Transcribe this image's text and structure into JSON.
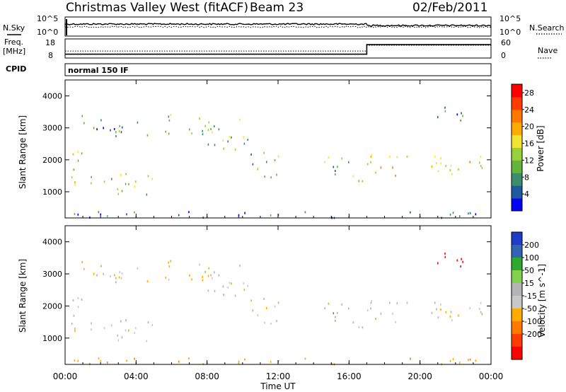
{
  "header": {
    "station": "Christmas Valley West (fitACF)",
    "beam": "Beam 23",
    "date": "02/Feb/2011"
  },
  "colors": {
    "power_scale": [
      "#0000ff",
      "#1e5aa0",
      "#3c8c6e",
      "#64b43c",
      "#96d23c",
      "#f0e632",
      "#ffaa00",
      "#ff7800",
      "#ff3c00",
      "#ff0000"
    ],
    "velocity_scale": [
      "#1e3cc8",
      "#3264b4",
      "#2ea82e",
      "#82d24b",
      "#b4b4b4",
      "#c8c8c8",
      "#ffaa00",
      "#ff7800",
      "#ff3c00",
      "#ff0000"
    ]
  },
  "chart_data": [
    {
      "type": "line",
      "name": "noise-panel",
      "left_label": "N.Sky",
      "right_label": "N.Search",
      "left_ticks": [
        "10^5",
        "10^0"
      ],
      "right_ticks": [
        "10^5",
        "10^0"
      ]
    },
    {
      "type": "line",
      "name": "frequency-panel",
      "left_label_top": "Freq.",
      "left_label_bottom": "[MHz]",
      "right_label": "Nave",
      "left_ticks": [
        "18",
        "8"
      ],
      "right_ticks": [
        "60",
        "0"
      ],
      "freq_steps": [
        {
          "from": "00:00",
          "to": "17:00",
          "value": 10
        },
        {
          "from": "17:00",
          "to": "24:00",
          "value": 15
        }
      ],
      "nave_steps": [
        {
          "from": "00:00",
          "to": "17:00",
          "value": 22
        },
        {
          "from": "17:00",
          "to": "24:00",
          "value": 40
        }
      ]
    },
    {
      "type": "table",
      "name": "cpid",
      "label": "CPID",
      "value": "normal 150 IF"
    },
    {
      "type": "heatmap",
      "name": "power",
      "ylabel": "Slant Range [km]",
      "yticks": [
        1000,
        2000,
        3000,
        4000
      ],
      "ylim": [
        180,
        4500
      ],
      "colorbar_label": "Power [dB]",
      "colorbar_ticks": [
        4,
        8,
        12,
        16,
        20,
        24,
        28
      ],
      "colorbar_range": [
        0,
        30
      ]
    },
    {
      "type": "heatmap",
      "name": "velocity",
      "ylabel": "Slant Range [km]",
      "yticks": [
        1000,
        2000,
        3000,
        4000
      ],
      "ylim": [
        180,
        4500
      ],
      "colorbar_label": "Velocity [m s^-1]",
      "colorbar_ticks": [
        200,
        100,
        50,
        15,
        -15,
        -50,
        -100,
        -200
      ],
      "xlabel": "Time UT",
      "xticks": [
        "00:00",
        "04:00",
        "08:00",
        "12:00",
        "16:00",
        "20:00",
        "00:00"
      ],
      "xlim_hours": [
        0,
        24
      ]
    }
  ],
  "echo_regions": [
    {
      "t0": 0.0,
      "t1": 1.0,
      "r0": 1100,
      "r1": 2300,
      "power": 14,
      "vel": 0
    },
    {
      "t0": 0.0,
      "t1": 0.7,
      "r0": 1200,
      "r1": 1550,
      "power": 20,
      "vel": -20
    },
    {
      "t0": 0.8,
      "t1": 3.0,
      "r0": 2700,
      "r1": 3400,
      "power": 6,
      "vel": 0
    },
    {
      "t0": 0.9,
      "t1": 1.3,
      "r0": 3300,
      "r1": 3800,
      "power": 6,
      "vel": -40
    },
    {
      "t0": 1.0,
      "t1": 5.0,
      "r0": 900,
      "r1": 1600,
      "power": 14,
      "vel": 0
    },
    {
      "t0": 3.0,
      "t1": 4.8,
      "r0": 2700,
      "r1": 3300,
      "power": 10,
      "vel": -20
    },
    {
      "t0": 5.6,
      "t1": 8.5,
      "r0": 2800,
      "r1": 3550,
      "power": 12,
      "vel": -30
    },
    {
      "t0": 7.5,
      "t1": 10.5,
      "r0": 2300,
      "r1": 3300,
      "power": 12,
      "vel": 0
    },
    {
      "t0": 10.0,
      "t1": 12.0,
      "r0": 1400,
      "r1": 2300,
      "power": 10,
      "vel": 0
    },
    {
      "t0": 14.5,
      "t1": 16.0,
      "r0": 1200,
      "r1": 2100,
      "power": 10,
      "vel": 20
    },
    {
      "t0": 16.0,
      "t1": 17.0,
      "r0": 1000,
      "r1": 1500,
      "power": 20,
      "vel": 0
    },
    {
      "t0": 17.0,
      "t1": 24.0,
      "r0": 1500,
      "r1": 2200,
      "power": 18,
      "vel": 0
    },
    {
      "t0": 20.5,
      "t1": 22.5,
      "r0": 3200,
      "r1": 3800,
      "power": 6,
      "vel": -200
    },
    {
      "t0": 0.0,
      "t1": 24.0,
      "r0": 180,
      "r1": 380,
      "power": 4,
      "vel": -40
    }
  ]
}
